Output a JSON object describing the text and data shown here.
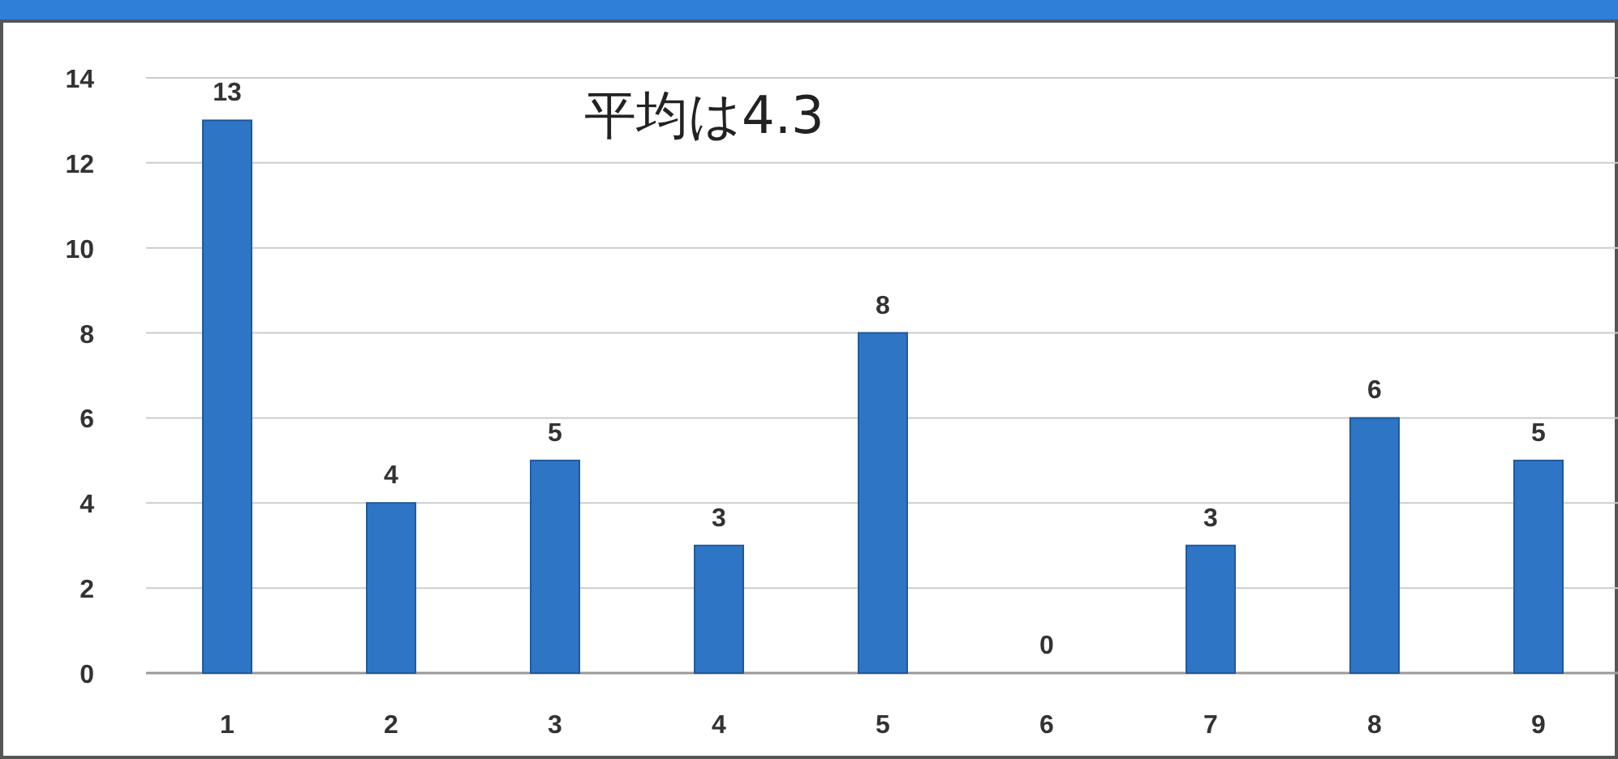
{
  "chart_data": {
    "type": "bar",
    "categories": [
      "1",
      "2",
      "3",
      "4",
      "5",
      "6",
      "7",
      "8",
      "9"
    ],
    "values": [
      13,
      4,
      5,
      3,
      8,
      0,
      3,
      6,
      5
    ],
    "color": "#2e75c6",
    "ylim": [
      0,
      14
    ],
    "yticks": [
      0,
      2,
      4,
      6,
      8,
      10,
      12,
      14
    ],
    "grid": "y",
    "data_labels": true,
    "annotations": [
      "平均は4.3"
    ]
  }
}
